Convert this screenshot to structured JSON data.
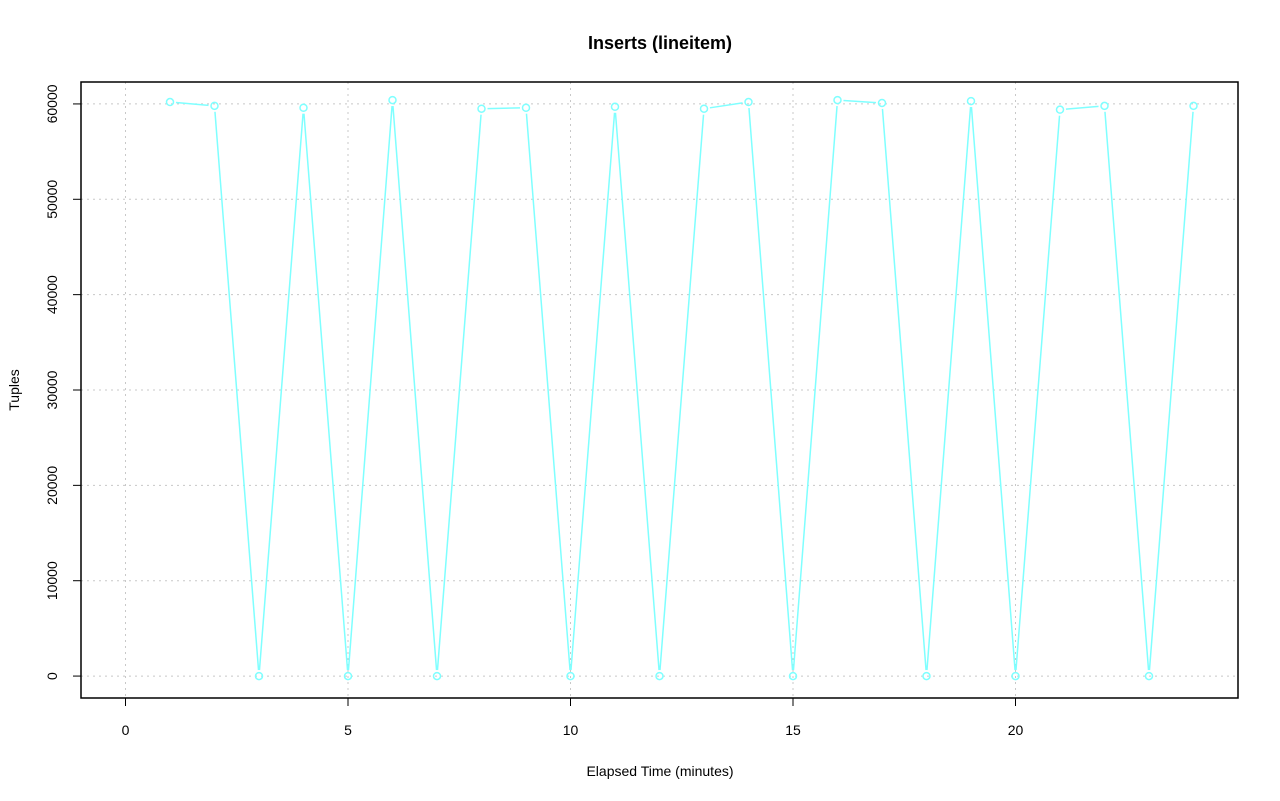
{
  "chart_data": {
    "type": "line",
    "title": "Inserts (lineitem)",
    "xlabel": "Elapsed Time (minutes)",
    "ylabel": "Tuples",
    "xlim": [
      -1,
      25
    ],
    "ylim": [
      -2300,
      62300
    ],
    "x_ticks": [
      0,
      5,
      10,
      15,
      20
    ],
    "y_ticks": [
      0,
      10000,
      20000,
      30000,
      40000,
      50000,
      60000
    ],
    "x_tick_labels": [
      "0",
      "5",
      "10",
      "15",
      "20"
    ],
    "y_tick_labels": [
      "0",
      "10000",
      "20000",
      "30000",
      "40000",
      "50000",
      "60000"
    ],
    "grid": true,
    "series": [
      {
        "color": "#7fffff",
        "marker": "circle",
        "x": [
          1,
          2,
          3,
          4,
          5,
          6,
          7,
          8,
          9,
          10,
          11,
          12,
          13,
          14,
          15,
          16,
          17,
          18,
          19,
          20,
          21,
          22,
          23,
          24
        ],
        "values": [
          60200,
          59800,
          0,
          59600,
          0,
          60400,
          0,
          59500,
          59600,
          0,
          59700,
          0,
          59500,
          60200,
          0,
          60400,
          60100,
          0,
          60300,
          0,
          59400,
          59800,
          0,
          59800
        ]
      }
    ]
  }
}
